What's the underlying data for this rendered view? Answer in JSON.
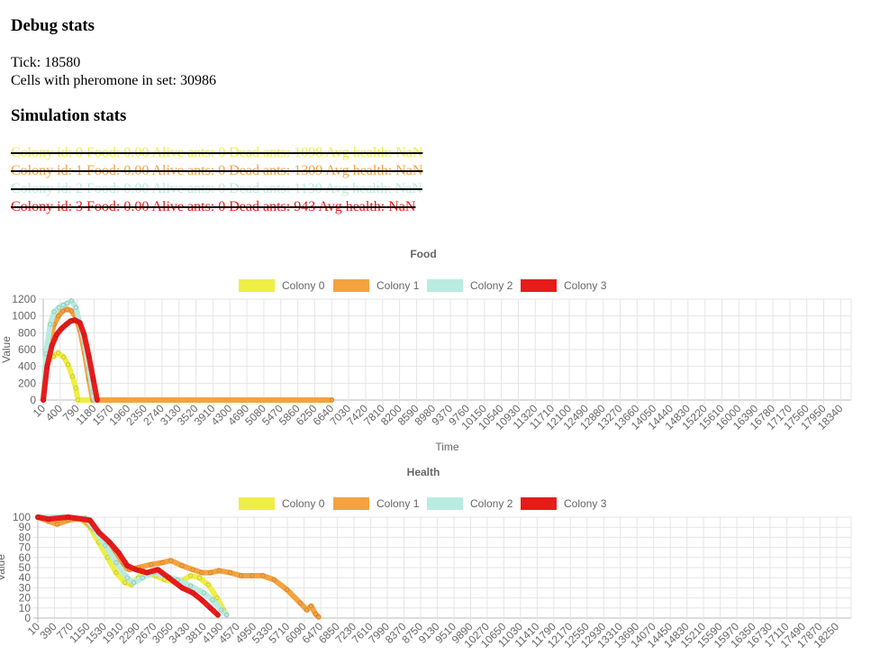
{
  "debug": {
    "heading": "Debug stats",
    "tick": "Tick: 18580",
    "cells": "Cells with pheromone in set: 30986"
  },
  "simulation": {
    "heading": "Simulation stats",
    "colonies": [
      {
        "text": "Colony id: 0 Food: 0.00 Alive ants: 0 Dead ants: 1098 Avg health: NaN",
        "color": "#eeee44"
      },
      {
        "text": "Colony id: 1 Food: 0.00 Alive ants: 0 Dead ants: 1309 Avg health: NaN",
        "color": "#f5a23f"
      },
      {
        "text": "Colony id: 2 Food: 0.00 Alive ants: 0 Dead ants: 1130 Avg health: NaN",
        "color": "#b8ece0"
      },
      {
        "text": "Colony id: 3 Food: 0.00 Alive ants: 0 Dead ants: 943 Avg health: NaN",
        "color": "#e81b1b"
      }
    ]
  },
  "chart_data": [
    {
      "type": "line",
      "title": "Food",
      "xlabel": "Time",
      "ylabel": "Value",
      "ylim": [
        0,
        1200
      ],
      "yticks": [
        0,
        200,
        400,
        600,
        800,
        1000,
        1200
      ],
      "grid": true,
      "legend_position": "top",
      "x_ticks": [
        10,
        400,
        790,
        1180,
        1570,
        1960,
        2350,
        2740,
        3130,
        3520,
        3910,
        4300,
        4690,
        5080,
        5470,
        5860,
        6250,
        6640,
        7030,
        7420,
        7810,
        8200,
        8590,
        8980,
        9370,
        9760,
        10150,
        10540,
        10930,
        11320,
        11710,
        12100,
        12490,
        12880,
        13270,
        13660,
        14050,
        14440,
        14830,
        15220,
        15610,
        16000,
        16390,
        16780,
        17170,
        17560,
        17950,
        18340
      ],
      "x_max": 18580,
      "series": [
        {
          "name": "Colony 0",
          "color": "#eeee44",
          "points": [
            [
              10,
              0
            ],
            [
              60,
              300
            ],
            [
              120,
              470
            ],
            [
              250,
              520
            ],
            [
              350,
              560
            ],
            [
              480,
              510
            ],
            [
              580,
              420
            ],
            [
              680,
              280
            ],
            [
              760,
              140
            ],
            [
              810,
              0
            ],
            [
              4320,
              0
            ]
          ]
        },
        {
          "name": "Colony 1",
          "color": "#f5a23f",
          "points": [
            [
              10,
              0
            ],
            [
              70,
              450
            ],
            [
              160,
              700
            ],
            [
              260,
              900
            ],
            [
              360,
              1000
            ],
            [
              460,
              1060
            ],
            [
              560,
              1080
            ],
            [
              660,
              1060
            ],
            [
              760,
              980
            ],
            [
              860,
              820
            ],
            [
              960,
              560
            ],
            [
              1060,
              250
            ],
            [
              1150,
              0
            ],
            [
              6640,
              0
            ]
          ]
        },
        {
          "name": "Colony 2",
          "color": "#b8ece0",
          "points": [
            [
              10,
              0
            ],
            [
              70,
              550
            ],
            [
              170,
              900
            ],
            [
              260,
              1050
            ],
            [
              370,
              1100
            ],
            [
              470,
              1130
            ],
            [
              560,
              1150
            ],
            [
              660,
              1180
            ],
            [
              760,
              1100
            ],
            [
              860,
              900
            ],
            [
              960,
              680
            ],
            [
              1060,
              380
            ],
            [
              1150,
              100
            ],
            [
              1190,
              0
            ]
          ]
        },
        {
          "name": "Colony 3",
          "color": "#e81b1b",
          "points": [
            [
              10,
              0
            ],
            [
              100,
              400
            ],
            [
              210,
              650
            ],
            [
              320,
              780
            ],
            [
              430,
              850
            ],
            [
              540,
              900
            ],
            [
              640,
              940
            ],
            [
              740,
              950
            ],
            [
              850,
              920
            ],
            [
              950,
              780
            ],
            [
              1060,
              520
            ],
            [
              1160,
              250
            ],
            [
              1250,
              0
            ]
          ]
        }
      ]
    },
    {
      "type": "line",
      "title": "Health",
      "xlabel": "",
      "ylabel": "Value",
      "ylim": [
        0,
        100
      ],
      "yticks": [
        0,
        10,
        20,
        30,
        40,
        50,
        60,
        70,
        80,
        90,
        100
      ],
      "grid": true,
      "legend_position": "top",
      "x_ticks": [
        10,
        390,
        770,
        1150,
        1530,
        1910,
        2290,
        2670,
        3050,
        3430,
        3810,
        4190,
        4570,
        4950,
        5330,
        5710,
        6090,
        6470,
        6850,
        7230,
        7610,
        7990,
        8370,
        8750,
        9130,
        9510,
        9890,
        10270,
        10650,
        11030,
        11410,
        11790,
        12170,
        12550,
        12930,
        13310,
        13690,
        14070,
        14450,
        14830,
        15210,
        15590,
        15970,
        16350,
        16730,
        17110,
        17490,
        17870,
        18250
      ],
      "x_max": 18580,
      "series": [
        {
          "name": "Colony 0",
          "color": "#eeee44",
          "points": [
            [
              10,
              100
            ],
            [
              500,
              100
            ],
            [
              1000,
              98
            ],
            [
              1200,
              90
            ],
            [
              1400,
              75
            ],
            [
              1600,
              60
            ],
            [
              1800,
              45
            ],
            [
              2000,
              35
            ],
            [
              2150,
              33
            ],
            [
              2300,
              40
            ],
            [
              2500,
              45
            ],
            [
              2700,
              42
            ],
            [
              2900,
              38
            ],
            [
              3100,
              36
            ],
            [
              3300,
              37
            ],
            [
              3500,
              42
            ],
            [
              3700,
              40
            ],
            [
              3900,
              33
            ],
            [
              4100,
              20
            ],
            [
              4250,
              8
            ],
            [
              4320,
              3
            ]
          ]
        },
        {
          "name": "Colony 1",
          "color": "#f5a23f",
          "points": [
            [
              10,
              100
            ],
            [
              250,
              96
            ],
            [
              450,
              93
            ],
            [
              700,
              97
            ],
            [
              1000,
              99
            ],
            [
              1200,
              92
            ],
            [
              1450,
              80
            ],
            [
              1700,
              65
            ],
            [
              1900,
              52
            ],
            [
              2100,
              48
            ],
            [
              2300,
              50
            ],
            [
              2600,
              53
            ],
            [
              2850,
              55
            ],
            [
              3050,
              57
            ],
            [
              3300,
              52
            ],
            [
              3550,
              48
            ],
            [
              3750,
              45
            ],
            [
              3950,
              45
            ],
            [
              4150,
              47
            ],
            [
              4400,
              45
            ],
            [
              4650,
              42
            ],
            [
              4900,
              42
            ],
            [
              5150,
              42
            ],
            [
              5400,
              38
            ],
            [
              5700,
              28
            ],
            [
              6000,
              15
            ],
            [
              6150,
              8
            ],
            [
              6250,
              12
            ],
            [
              6350,
              4
            ],
            [
              6420,
              1
            ]
          ]
        },
        {
          "name": "Colony 2",
          "color": "#b8ece0",
          "points": [
            [
              10,
              100
            ],
            [
              600,
              100
            ],
            [
              1100,
              99
            ],
            [
              1300,
              88
            ],
            [
              1550,
              72
            ],
            [
              1800,
              55
            ],
            [
              2050,
              40
            ],
            [
              2200,
              35
            ],
            [
              2400,
              40
            ],
            [
              2650,
              45
            ],
            [
              2900,
              42
            ],
            [
              3200,
              38
            ],
            [
              3500,
              32
            ],
            [
              3800,
              25
            ],
            [
              4000,
              18
            ],
            [
              4200,
              8
            ],
            [
              4320,
              3
            ]
          ]
        },
        {
          "name": "Colony 3",
          "color": "#e81b1b",
          "points": [
            [
              10,
              100
            ],
            [
              250,
              98
            ],
            [
              700,
              100
            ],
            [
              1200,
              97
            ],
            [
              1400,
              85
            ],
            [
              1650,
              75
            ],
            [
              1850,
              65
            ],
            [
              2050,
              52
            ],
            [
              2250,
              48
            ],
            [
              2500,
              45
            ],
            [
              2750,
              48
            ],
            [
              3000,
              40
            ],
            [
              3300,
              30
            ],
            [
              3550,
              25
            ],
            [
              3750,
              18
            ],
            [
              3950,
              10
            ],
            [
              4120,
              3
            ]
          ]
        }
      ]
    }
  ]
}
